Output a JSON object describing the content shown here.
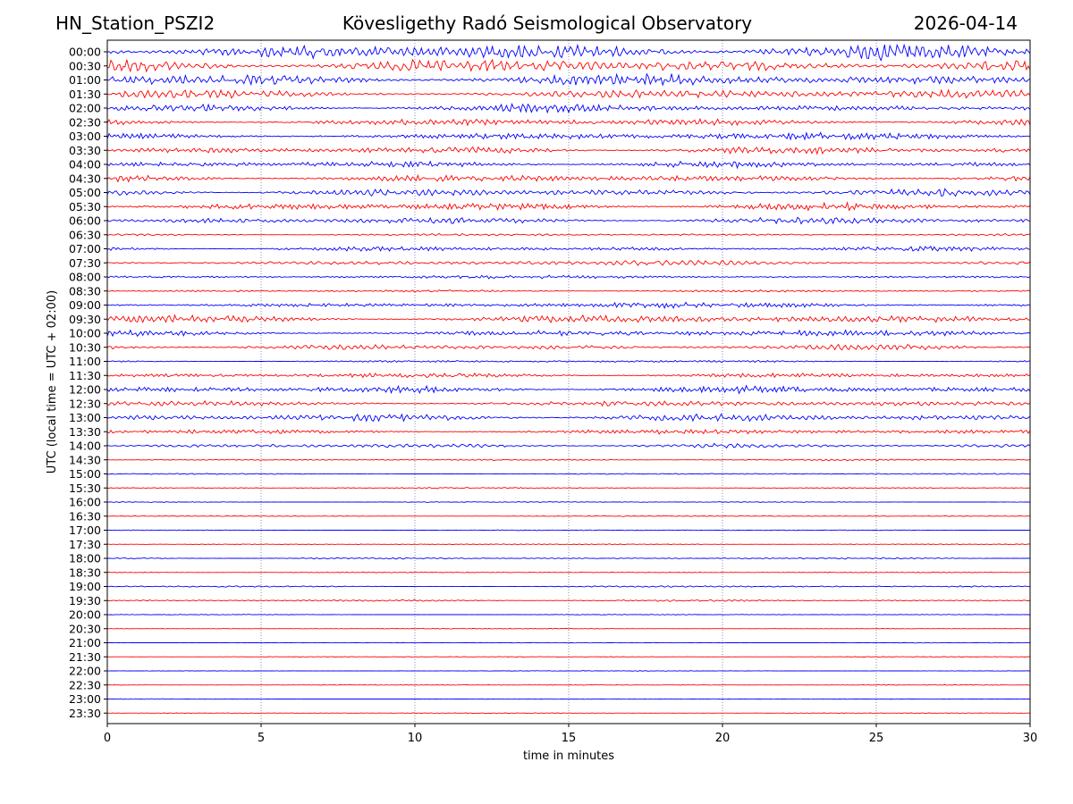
{
  "header": {
    "station": "HN_Station_PSZI2",
    "observatory": "Kövesligethy Radó Seismological Observatory",
    "date": "2026-04-14"
  },
  "chart_data": {
    "type": "line",
    "xlabel": "time in minutes",
    "ylabel": "UTC (local time = UTC + 02:00)",
    "xlim": [
      0,
      30
    ],
    "xticks": [
      0,
      5,
      10,
      15,
      20,
      25,
      30
    ],
    "grid": "vertical dotted lines at x = 5, 10, 15, 20, 25",
    "series_colors": [
      "#0000ff",
      "#ff0000"
    ],
    "rows": [
      {
        "label": "00:00",
        "amplitude": 1.0
      },
      {
        "label": "00:30",
        "amplitude": 0.85
      },
      {
        "label": "01:00",
        "amplitude": 0.75
      },
      {
        "label": "01:30",
        "amplitude": 0.55
      },
      {
        "label": "02:00",
        "amplitude": 0.5
      },
      {
        "label": "02:30",
        "amplitude": 0.45
      },
      {
        "label": "03:00",
        "amplitude": 0.45
      },
      {
        "label": "03:30",
        "amplitude": 0.45
      },
      {
        "label": "04:00",
        "amplitude": 0.4
      },
      {
        "label": "04:30",
        "amplitude": 0.45
      },
      {
        "label": "05:00",
        "amplitude": 0.45
      },
      {
        "label": "05:30",
        "amplitude": 0.45
      },
      {
        "label": "06:00",
        "amplitude": 0.4
      },
      {
        "label": "06:30",
        "amplitude": 0.15
      },
      {
        "label": "07:00",
        "amplitude": 0.3
      },
      {
        "label": "07:30",
        "amplitude": 0.3
      },
      {
        "label": "08:00",
        "amplitude": 0.2
      },
      {
        "label": "08:30",
        "amplitude": 0.15
      },
      {
        "label": "09:00",
        "amplitude": 0.35
      },
      {
        "label": "09:30",
        "amplitude": 0.5
      },
      {
        "label": "10:00",
        "amplitude": 0.4
      },
      {
        "label": "10:30",
        "amplitude": 0.35
      },
      {
        "label": "11:00",
        "amplitude": 0.15
      },
      {
        "label": "11:30",
        "amplitude": 0.3
      },
      {
        "label": "12:00",
        "amplitude": 0.45
      },
      {
        "label": "12:30",
        "amplitude": 0.35
      },
      {
        "label": "13:00",
        "amplitude": 0.45
      },
      {
        "label": "13:30",
        "amplitude": 0.3
      },
      {
        "label": "14:00",
        "amplitude": 0.25
      },
      {
        "label": "14:30",
        "amplitude": 0.1
      },
      {
        "label": "15:00",
        "amplitude": 0.08
      },
      {
        "label": "15:30",
        "amplitude": 0.08
      },
      {
        "label": "16:00",
        "amplitude": 0.06
      },
      {
        "label": "16:30",
        "amplitude": 0.06
      },
      {
        "label": "17:00",
        "amplitude": 0.06
      },
      {
        "label": "17:30",
        "amplitude": 0.06
      },
      {
        "label": "18:00",
        "amplitude": 0.1
      },
      {
        "label": "18:30",
        "amplitude": 0.06
      },
      {
        "label": "19:00",
        "amplitude": 0.1
      },
      {
        "label": "19:30",
        "amplitude": 0.12
      },
      {
        "label": "20:00",
        "amplitude": 0.05
      },
      {
        "label": "20:30",
        "amplitude": 0.04
      },
      {
        "label": "21:00",
        "amplitude": 0.04
      },
      {
        "label": "21:30",
        "amplitude": 0.04
      },
      {
        "label": "22:00",
        "amplitude": 0.04
      },
      {
        "label": "22:30",
        "amplitude": 0.04
      },
      {
        "label": "23:00",
        "amplitude": 0.04
      },
      {
        "label": "23:30",
        "amplitude": 0.04
      }
    ]
  }
}
